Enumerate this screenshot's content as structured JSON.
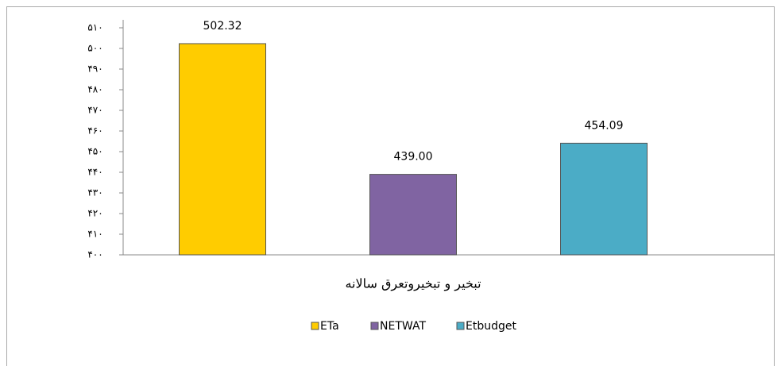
{
  "chart_data": {
    "type": "bar",
    "categories": [
      "تبخیر و تبخیروتعرق سالانه"
    ],
    "series": [
      {
        "name": "ETa",
        "color": "#FFCC00",
        "values": [
          502.32
        ],
        "value_labels": [
          "502.32"
        ]
      },
      {
        "name": "NETWAT",
        "color": "#8064A2",
        "values": [
          439.0
        ],
        "value_labels": [
          "439.00"
        ]
      },
      {
        "name": "Etbudget",
        "color": "#4BACC6",
        "values": [
          454.09
        ],
        "value_labels": [
          "454.09"
        ]
      }
    ],
    "ylim": [
      400,
      510
    ],
    "yticks": [
      {
        "value": 400,
        "label": "۴۰۰"
      },
      {
        "value": 410,
        "label": "۴۱۰"
      },
      {
        "value": 420,
        "label": "۴۲۰"
      },
      {
        "value": 430,
        "label": "۴۳۰"
      },
      {
        "value": 440,
        "label": "۴۴۰"
      },
      {
        "value": 450,
        "label": "۴۵۰"
      },
      {
        "value": 460,
        "label": "۴۶۰"
      },
      {
        "value": 470,
        "label": "۴۷۰"
      },
      {
        "value": 480,
        "label": "۴۸۰"
      },
      {
        "value": 490,
        "label": "۴۹۰"
      },
      {
        "value": 500,
        "label": "۵۰۰"
      },
      {
        "value": 510,
        "label": "۵۱۰"
      }
    ],
    "grid": false,
    "legend": "bottom"
  }
}
